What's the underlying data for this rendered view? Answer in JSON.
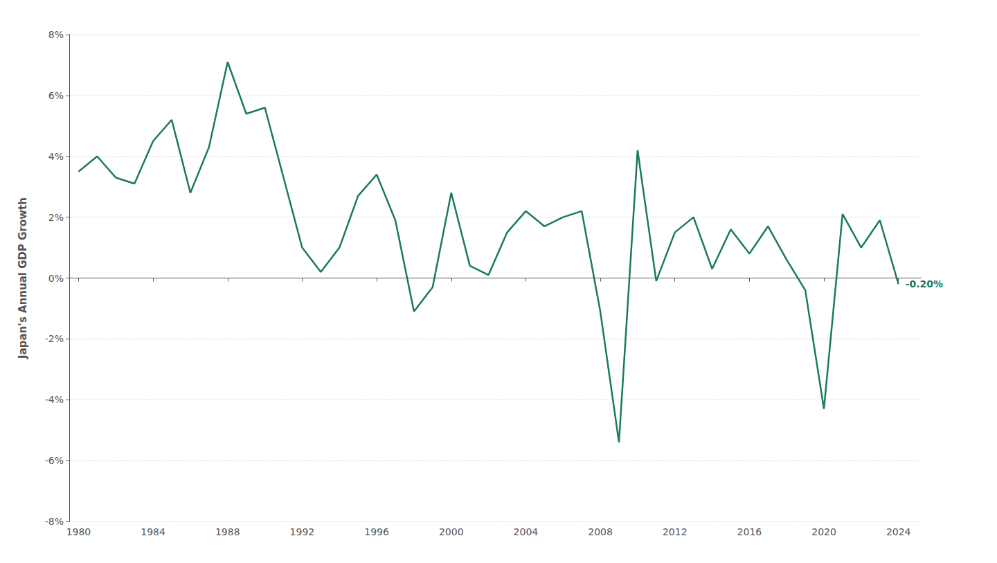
{
  "chart_data": {
    "type": "line",
    "ylabel": "Japan's Annual GDP Growth",
    "x": [
      1980,
      1981,
      1982,
      1983,
      1984,
      1985,
      1986,
      1987,
      1988,
      1989,
      1990,
      1991,
      1992,
      1993,
      1994,
      1995,
      1996,
      1997,
      1998,
      1999,
      2000,
      2001,
      2002,
      2003,
      2004,
      2005,
      2006,
      2007,
      2008,
      2009,
      2010,
      2011,
      2012,
      2013,
      2014,
      2015,
      2016,
      2017,
      2018,
      2019,
      2020,
      2021,
      2022,
      2023,
      2024
    ],
    "values": [
      3.5,
      4.0,
      3.3,
      3.1,
      4.5,
      5.2,
      2.8,
      4.3,
      7.1,
      5.4,
      5.6,
      3.3,
      1.0,
      0.2,
      1.0,
      2.7,
      3.4,
      1.9,
      -1.1,
      -0.3,
      2.8,
      0.4,
      0.1,
      1.5,
      2.2,
      1.7,
      2.0,
      2.2,
      -1.1,
      -5.4,
      4.2,
      -0.1,
      1.5,
      2.0,
      0.3,
      1.6,
      0.8,
      1.7,
      0.6,
      -0.4,
      -4.3,
      2.1,
      1.0,
      1.9,
      -0.2
    ],
    "color": "#1a7a5e",
    "xlim": [
      1979.5,
      2025.2
    ],
    "xticks": [
      1980,
      1984,
      1988,
      1992,
      1996,
      2000,
      2004,
      2008,
      2012,
      2016,
      2020,
      2024
    ],
    "ylim": [
      -8,
      8
    ],
    "yticks": [
      {
        "value": -8,
        "label": "-8%"
      },
      {
        "value": -6,
        "label": "-6%"
      },
      {
        "value": -4,
        "label": "-4%"
      },
      {
        "value": -2,
        "label": "-2%"
      },
      {
        "value": 0,
        "label": "0%"
      },
      {
        "value": 2,
        "label": "2%"
      },
      {
        "value": 4,
        "label": "4%"
      },
      {
        "value": 6,
        "label": "6%"
      },
      {
        "value": 8,
        "label": "8%"
      }
    ],
    "grid": true,
    "annotations": [
      {
        "text": "-0.20%",
        "x": 2024,
        "y": -0.2
      }
    ]
  }
}
